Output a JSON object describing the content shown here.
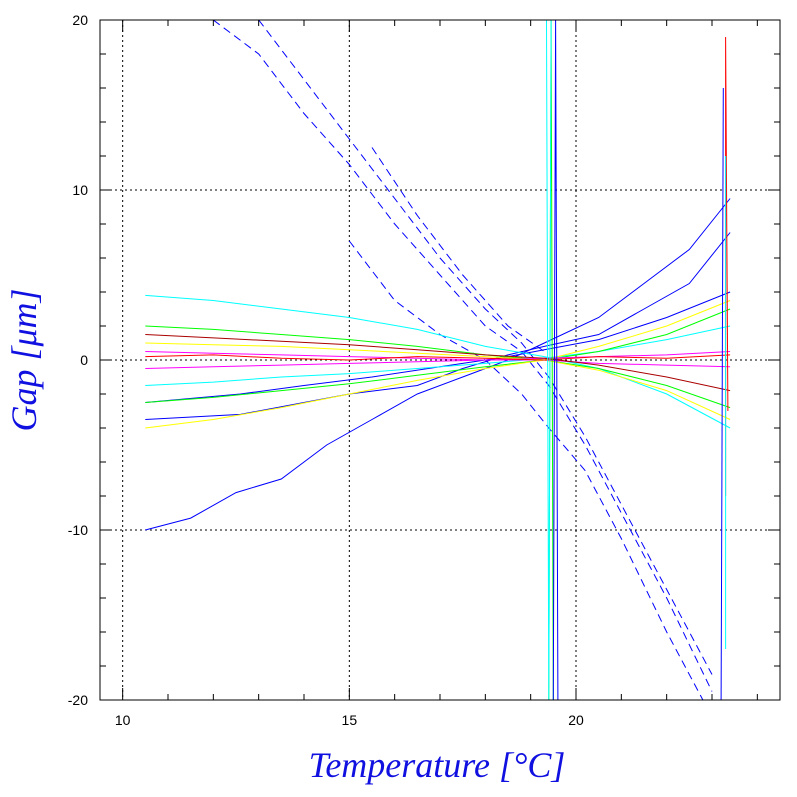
{
  "chart_data": {
    "type": "line",
    "xlabel": "Temperature [°C]",
    "ylabel": "Gap [μm]",
    "xlim": [
      9.5,
      24.5
    ],
    "ylim": [
      -20,
      20
    ],
    "x_ticks": [
      10,
      15,
      20
    ],
    "y_ticks": [
      -20,
      -10,
      0,
      10,
      20
    ],
    "x_tick_labels": [
      "10",
      "15",
      "20"
    ],
    "y_tick_labels": [
      "-20",
      "-10",
      "0",
      "10",
      "20"
    ],
    "grid": true,
    "legend": "none",
    "colors": [
      "#0000ff",
      "#00ffff",
      "#00ff00",
      "#ffff00",
      "#ff00ff",
      "#ff0000",
      "#aa0000",
      "#008800"
    ],
    "series": [
      {
        "color": "#0000ff",
        "style": "solid",
        "x": [
          10.5,
          12.6,
          14.0,
          15.0,
          16.5,
          17.5,
          18.5,
          19.3,
          20.5,
          21.5,
          22.5,
          23.4
        ],
        "y": [
          -3.5,
          -3.2,
          -2.5,
          -2.0,
          -1.5,
          -0.5,
          0.3,
          0.8,
          1.5,
          3.0,
          4.5,
          7.5
        ]
      },
      {
        "color": "#0000ff",
        "style": "solid",
        "x": [
          10.5,
          11.5,
          12.5,
          13.5,
          14.5,
          15.5,
          16.5,
          17.5,
          18.5,
          19.3,
          20.5,
          21.5,
          22.5,
          23.4
        ],
        "y": [
          -10.0,
          -9.3,
          -7.8,
          -7.0,
          -5.0,
          -3.5,
          -2.0,
          -1.0,
          0.0,
          1.0,
          2.5,
          4.5,
          6.5,
          9.5
        ]
      },
      {
        "color": "#0000ff",
        "style": "solid",
        "x": [
          10.5,
          12.6,
          14.0,
          15.5,
          17.0,
          18.5,
          19.3,
          20.5,
          22.0,
          23.4
        ],
        "y": [
          -2.5,
          -2.0,
          -1.5,
          -1.0,
          -0.4,
          0.2,
          0.6,
          1.2,
          2.5,
          4.0
        ]
      },
      {
        "color": "#0000ff",
        "style": "dashed",
        "x": [
          12.0,
          13.0,
          14.0,
          15.0,
          16.0,
          17.0,
          18.0,
          18.8,
          19.4,
          20.2,
          21.0,
          22.0,
          23.0
        ],
        "y": [
          20.0,
          18.0,
          14.5,
          11.5,
          8.0,
          5.0,
          2.0,
          0.5,
          -1.5,
          -5.0,
          -9.0,
          -14.0,
          -19.5
        ]
      },
      {
        "color": "#0000ff",
        "style": "dashed",
        "x": [
          13.0,
          14.0,
          15.0,
          16.0,
          17.0,
          18.0,
          18.8,
          19.4,
          20.2,
          21.0,
          22.0,
          23.0
        ],
        "y": [
          20.0,
          16.5,
          13.0,
          9.5,
          6.0,
          3.0,
          1.0,
          -1.0,
          -4.5,
          -8.5,
          -13.5,
          -18.5
        ]
      },
      {
        "color": "#0000ff",
        "style": "dashed",
        "x": [
          15.0,
          16.0,
          17.0,
          18.0,
          18.8,
          19.4,
          20.2,
          21.0,
          22.0,
          22.8
        ],
        "y": [
          7.0,
          3.5,
          1.5,
          0.0,
          -2.0,
          -4.0,
          -6.5,
          -10.5,
          -16.0,
          -20.0
        ]
      },
      {
        "color": "#0000ff",
        "style": "dashed",
        "x": [
          15.5,
          16.5,
          17.5,
          18.5,
          19.3
        ],
        "y": [
          12.5,
          8.5,
          5.0,
          2.0,
          0.5
        ]
      },
      {
        "color": "#00ffff",
        "style": "solid",
        "x": [
          10.5,
          12.0,
          13.5,
          15.0,
          16.5,
          18.0,
          19.3,
          20.5,
          22.0,
          23.4
        ],
        "y": [
          3.8,
          3.5,
          3.0,
          2.5,
          1.8,
          0.8,
          0.2,
          -0.5,
          -2.0,
          -4.0
        ]
      },
      {
        "color": "#00ffff",
        "style": "solid",
        "x": [
          10.5,
          12.0,
          13.5,
          15.0,
          16.5,
          18.0,
          19.3,
          20.5,
          22.0,
          23.4
        ],
        "y": [
          -1.5,
          -1.3,
          -1.0,
          -0.8,
          -0.5,
          -0.2,
          0.1,
          0.5,
          1.2,
          2.0
        ]
      },
      {
        "color": "#00ff00",
        "style": "solid",
        "x": [
          10.5,
          12.0,
          13.5,
          15.0,
          16.5,
          18.0,
          19.3,
          20.5,
          22.0,
          23.4
        ],
        "y": [
          2.0,
          1.8,
          1.5,
          1.2,
          0.8,
          0.3,
          0.0,
          -0.5,
          -1.5,
          -2.8
        ]
      },
      {
        "color": "#00ff00",
        "style": "solid",
        "x": [
          10.5,
          12.0,
          13.5,
          15.0,
          16.5,
          18.0,
          19.3,
          20.5,
          22.0,
          23.4
        ],
        "y": [
          -2.5,
          -2.2,
          -1.8,
          -1.4,
          -0.9,
          -0.4,
          0.0,
          0.5,
          1.5,
          3.0
        ]
      },
      {
        "color": "#ffff00",
        "style": "solid",
        "x": [
          10.5,
          12.0,
          13.5,
          15.0,
          16.5,
          18.0,
          19.3,
          20.5,
          22.0,
          23.4
        ],
        "y": [
          -4.0,
          -3.5,
          -2.8,
          -2.0,
          -1.2,
          -0.5,
          0.0,
          0.8,
          2.0,
          3.5
        ]
      },
      {
        "color": "#ffff00",
        "style": "solid",
        "x": [
          10.5,
          12.0,
          13.5,
          15.0,
          16.5,
          18.0,
          19.3,
          20.5,
          22.0,
          23.4
        ],
        "y": [
          1.0,
          0.9,
          0.8,
          0.6,
          0.4,
          0.2,
          0.0,
          -0.6,
          -1.8,
          -3.5
        ]
      },
      {
        "color": "#ff00ff",
        "style": "solid",
        "x": [
          10.5,
          12.0,
          13.5,
          15.0,
          16.5,
          18.0,
          19.3,
          20.5,
          22.0,
          23.4
        ],
        "y": [
          0.5,
          0.4,
          0.3,
          0.2,
          0.1,
          0.0,
          0.0,
          -0.2,
          -0.3,
          -0.4
        ]
      },
      {
        "color": "#ff00ff",
        "style": "solid",
        "x": [
          10.5,
          12.0,
          13.5,
          15.0,
          16.5,
          18.0,
          19.3,
          20.5,
          22.0,
          23.4
        ],
        "y": [
          -0.5,
          -0.4,
          -0.3,
          -0.2,
          -0.1,
          0.0,
          0.1,
          0.2,
          0.3,
          0.5
        ]
      },
      {
        "color": "#ff0000",
        "style": "solid",
        "x": [
          10.5,
          12.0,
          13.5,
          15.0,
          16.5,
          18.0,
          19.3,
          20.5,
          22.0,
          23.4
        ],
        "y": [
          0.2,
          0.3,
          0.1,
          0.0,
          0.2,
          0.1,
          0.0,
          0.2,
          0.1,
          0.3
        ]
      },
      {
        "color": "#aa0000",
        "style": "solid",
        "x": [
          10.5,
          12.0,
          13.5,
          15.0,
          16.5,
          18.0,
          19.3,
          20.5,
          22.0,
          23.4
        ],
        "y": [
          1.5,
          1.3,
          1.1,
          0.9,
          0.6,
          0.3,
          0.1,
          -0.3,
          -1.0,
          -1.8
        ]
      },
      {
        "color": "#00ff00",
        "style": "solid",
        "x": [
          19.4,
          19.45,
          19.5
        ],
        "y": [
          -20.0,
          20.0,
          -20.0
        ]
      },
      {
        "color": "#00ffff",
        "style": "solid",
        "x": [
          19.35,
          19.4,
          19.45
        ],
        "y": [
          20.0,
          -20.0,
          20.0
        ]
      },
      {
        "color": "#0000ff",
        "style": "solid",
        "x": [
          19.5,
          19.55,
          19.6
        ],
        "y": [
          -20.0,
          20.0,
          -20.0
        ]
      },
      {
        "color": "#ff0000",
        "style": "solid",
        "x": [
          23.3,
          23.3,
          23.35
        ],
        "y": [
          -8.0,
          19.0,
          -3.0
        ]
      },
      {
        "color": "#0000ff",
        "style": "solid",
        "x": [
          23.2,
          23.25
        ],
        "y": [
          -20.0,
          16.0
        ]
      },
      {
        "color": "#00ffff",
        "style": "solid",
        "x": [
          23.3,
          23.3
        ],
        "y": [
          -17.0,
          12.0
        ]
      }
    ]
  }
}
